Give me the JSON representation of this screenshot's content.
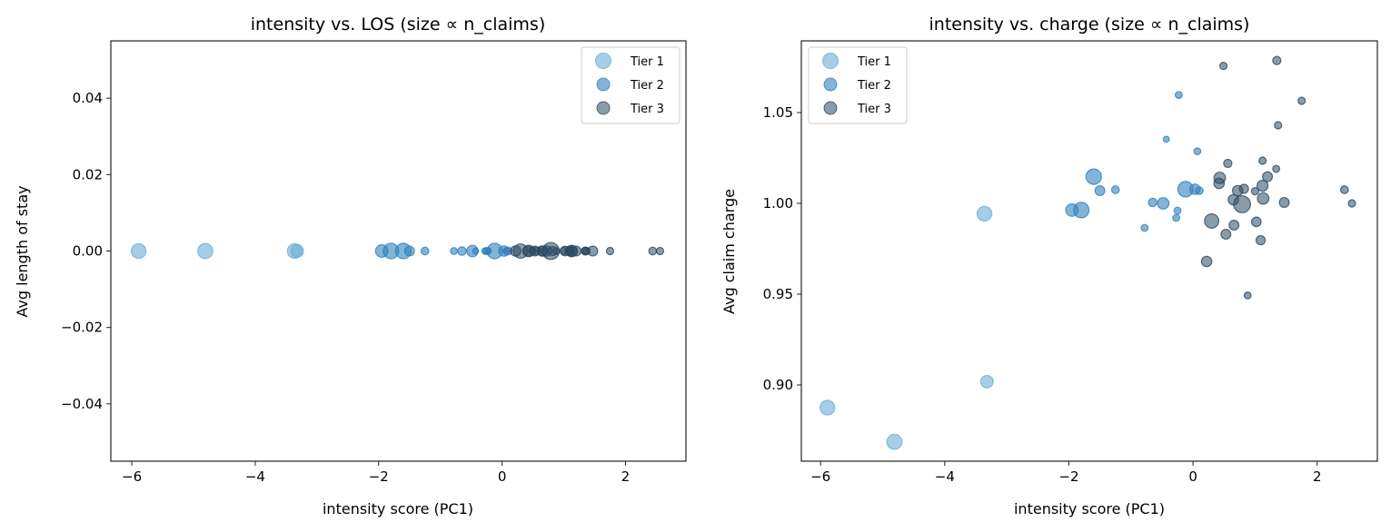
{
  "colors": {
    "Tier 1": "#6baed6",
    "Tier 2": "#3182bd",
    "Tier 3": "#2b4a63"
  },
  "chart_data": [
    {
      "type": "scatter",
      "title": "intensity vs. LOS (size ∝ n_claims)",
      "xlabel": "intensity score (PC1)",
      "ylabel": "Avg length of stay",
      "xlim": [
        -6.34,
        2.98
      ],
      "ylim": [
        -0.055,
        0.055
      ],
      "xticks": [
        -6,
        -4,
        -2,
        0,
        2
      ],
      "xtick_labels": [
        "−6",
        "−4",
        "−2",
        "0",
        "2"
      ],
      "yticks": [
        0.04,
        0.02,
        0.0,
        -0.02,
        -0.04
      ],
      "ytick_labels": [
        "0.04",
        "0.02",
        "0.00",
        "−0.02",
        "−0.04"
      ],
      "legend": {
        "placement": "top-right",
        "entries": [
          "Tier 1",
          "Tier 2",
          "Tier 3"
        ]
      },
      "grid": false,
      "y_source": "constant"
    },
    {
      "type": "scatter",
      "title": "intensity vs. charge (size ∝ n_claims)",
      "xlabel": "intensity score (PC1)",
      "ylabel": "Avg claim charge",
      "xlim": [
        -6.31,
        2.97
      ],
      "ylim": [
        0.858,
        1.0895
      ],
      "xticks": [
        -6,
        -4,
        -2,
        0,
        2
      ],
      "xtick_labels": [
        "−6",
        "−4",
        "−2",
        "0",
        "2"
      ],
      "yticks": [
        1.05,
        1.0,
        0.95,
        0.9
      ],
      "ytick_labels": [
        "1.05",
        "1.00",
        "0.95",
        "0.90"
      ],
      "legend": {
        "placement": "top-left",
        "entries": [
          "Tier 1",
          "Tier 2",
          "Tier 3"
        ]
      },
      "grid": false,
      "y_source": "charge"
    }
  ],
  "points": [
    {
      "tier": "Tier 1",
      "x": -5.89,
      "los": 0,
      "charge": 0.8875,
      "size": 90
    },
    {
      "tier": "Tier 1",
      "x": -4.81,
      "los": 0,
      "charge": 0.8687,
      "size": 95
    },
    {
      "tier": "Tier 1",
      "x": -3.36,
      "los": 0,
      "charge": 0.9943,
      "size": 90
    },
    {
      "tier": "Tier 1",
      "x": -3.32,
      "los": 0,
      "charge": 0.9018,
      "size": 65
    },
    {
      "tier": "Tier 2",
      "x": -0.23,
      "los": 0,
      "charge": 1.0597,
      "size": 20
    },
    {
      "tier": "Tier 2",
      "x": -0.43,
      "los": 0,
      "charge": 1.0353,
      "size": 15
    },
    {
      "tier": "Tier 2",
      "x": 0.07,
      "los": 0,
      "charge": 1.0287,
      "size": 20
    },
    {
      "tier": "Tier 2",
      "x": -1.6,
      "los": 0,
      "charge": 1.0147,
      "size": 100
    },
    {
      "tier": "Tier 2",
      "x": -1.5,
      "los": 0,
      "charge": 1.007,
      "size": 40
    },
    {
      "tier": "Tier 2",
      "x": -1.25,
      "los": 0,
      "charge": 1.0075,
      "size": 25
    },
    {
      "tier": "Tier 2",
      "x": -0.12,
      "los": 0,
      "charge": 1.0078,
      "size": 100
    },
    {
      "tier": "Tier 2",
      "x": 0.03,
      "los": 0,
      "charge": 1.0078,
      "size": 45
    },
    {
      "tier": "Tier 2",
      "x": 0.1,
      "los": 0,
      "charge": 1.007,
      "size": 25
    },
    {
      "tier": "Tier 2",
      "x": -1.95,
      "los": 0,
      "charge": 0.9963,
      "size": 65
    },
    {
      "tier": "Tier 2",
      "x": -1.8,
      "los": 0,
      "charge": 0.9963,
      "size": 100
    },
    {
      "tier": "Tier 2",
      "x": -0.65,
      "los": 0,
      "charge": 1.0005,
      "size": 30
    },
    {
      "tier": "Tier 2",
      "x": -0.48,
      "los": 0,
      "charge": 1.0,
      "size": 55
    },
    {
      "tier": "Tier 2",
      "x": -0.25,
      "los": 0,
      "charge": 0.996,
      "size": 20
    },
    {
      "tier": "Tier 2",
      "x": -0.27,
      "los": 0,
      "charge": 0.992,
      "size": 20
    },
    {
      "tier": "Tier 2",
      "x": -0.78,
      "los": 0,
      "charge": 0.9865,
      "size": 20
    },
    {
      "tier": "Tier 3",
      "x": 0.49,
      "los": 0,
      "charge": 1.0757,
      "size": 22
    },
    {
      "tier": "Tier 3",
      "x": 1.35,
      "los": 0,
      "charge": 1.0787,
      "size": 28
    },
    {
      "tier": "Tier 3",
      "x": 1.75,
      "los": 0,
      "charge": 1.0565,
      "size": 22
    },
    {
      "tier": "Tier 3",
      "x": 1.37,
      "los": 0,
      "charge": 1.043,
      "size": 22
    },
    {
      "tier": "Tier 3",
      "x": 0.56,
      "los": 0,
      "charge": 1.022,
      "size": 28
    },
    {
      "tier": "Tier 3",
      "x": 1.12,
      "los": 0,
      "charge": 1.0235,
      "size": 22
    },
    {
      "tier": "Tier 3",
      "x": 1.34,
      "los": 0,
      "charge": 1.019,
      "size": 20
    },
    {
      "tier": "Tier 3",
      "x": 1.2,
      "los": 0,
      "charge": 1.0147,
      "size": 40
    },
    {
      "tier": "Tier 3",
      "x": 0.43,
      "los": 0,
      "charge": 1.014,
      "size": 55
    },
    {
      "tier": "Tier 3",
      "x": 0.42,
      "los": 0,
      "charge": 1.011,
      "size": 45
    },
    {
      "tier": "Tier 3",
      "x": 1.12,
      "los": 0,
      "charge": 1.0097,
      "size": 50
    },
    {
      "tier": "Tier 3",
      "x": 0.72,
      "los": 0,
      "charge": 1.007,
      "size": 45
    },
    {
      "tier": "Tier 3",
      "x": 0.82,
      "los": 0,
      "charge": 1.008,
      "size": 35
    },
    {
      "tier": "Tier 3",
      "x": 1.0,
      "los": 0,
      "charge": 1.0067,
      "size": 22
    },
    {
      "tier": "Tier 3",
      "x": 0.65,
      "los": 0,
      "charge": 1.002,
      "size": 45
    },
    {
      "tier": "Tier 3",
      "x": 1.13,
      "los": 0,
      "charge": 1.0027,
      "size": 55
    },
    {
      "tier": "Tier 3",
      "x": 0.79,
      "los": 0,
      "charge": 0.9995,
      "size": 120
    },
    {
      "tier": "Tier 3",
      "x": 1.47,
      "los": 0,
      "charge": 1.0005,
      "size": 40
    },
    {
      "tier": "Tier 3",
      "x": 2.44,
      "los": 0,
      "charge": 1.0075,
      "size": 25
    },
    {
      "tier": "Tier 3",
      "x": 2.56,
      "los": 0,
      "charge": 1.0,
      "size": 22
    },
    {
      "tier": "Tier 3",
      "x": 0.3,
      "los": 0,
      "charge": 0.9903,
      "size": 85
    },
    {
      "tier": "Tier 3",
      "x": 1.02,
      "los": 0,
      "charge": 0.9898,
      "size": 38
    },
    {
      "tier": "Tier 3",
      "x": 0.66,
      "los": 0,
      "charge": 0.988,
      "size": 40
    },
    {
      "tier": "Tier 3",
      "x": 0.53,
      "los": 0,
      "charge": 0.983,
      "size": 40
    },
    {
      "tier": "Tier 3",
      "x": 1.09,
      "los": 0,
      "charge": 0.9797,
      "size": 35
    },
    {
      "tier": "Tier 3",
      "x": 0.22,
      "los": 0,
      "charge": 0.968,
      "size": 45
    },
    {
      "tier": "Tier 3",
      "x": 0.88,
      "los": 0,
      "charge": 0.9493,
      "size": 20
    }
  ]
}
